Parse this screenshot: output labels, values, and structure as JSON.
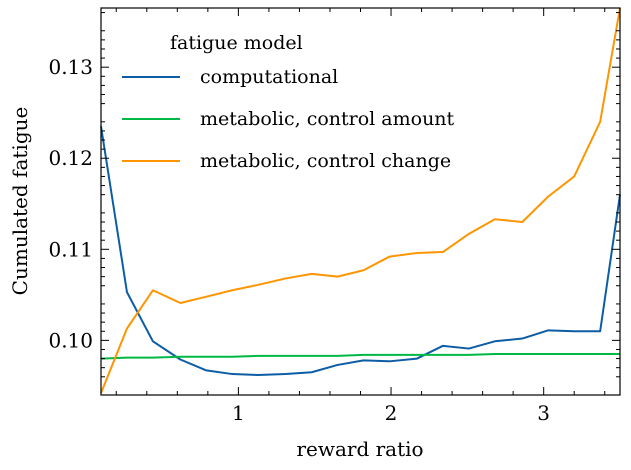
{
  "chart_data": {
    "type": "line",
    "xlabel": "reward ratio",
    "ylabel": "Cumulated fatigue",
    "xlim": [
      0.1,
      3.5
    ],
    "ylim": [
      0.094,
      0.1365
    ],
    "xticks": [
      1,
      2,
      3
    ],
    "xtick_labels": [
      "1",
      "2",
      "3"
    ],
    "yticks": [
      0.1,
      0.11,
      0.12,
      0.13
    ],
    "ytick_labels": [
      "0.10",
      "0.11",
      "0.12",
      "0.13"
    ],
    "grid": false,
    "legend": {
      "title": "fatigue model",
      "placement": "top-left"
    },
    "x": [
      0.1,
      0.27,
      0.44,
      0.62,
      0.79,
      0.96,
      1.13,
      1.31,
      1.48,
      1.65,
      1.82,
      1.99,
      2.17,
      2.34,
      2.51,
      2.68,
      2.86,
      3.03,
      3.2,
      3.37,
      3.5
    ],
    "series": [
      {
        "name": "computational",
        "color": "#0c5da5",
        "values": [
          0.1235,
          0.1053,
          0.0999,
          0.0979,
          0.0967,
          0.0963,
          0.0962,
          0.0963,
          0.0965,
          0.0973,
          0.0978,
          0.0977,
          0.098,
          0.0994,
          0.0991,
          0.0999,
          0.1002,
          0.1011,
          0.101,
          0.101,
          0.116
        ]
      },
      {
        "name": "metabolic, control amount",
        "color": "#00b945",
        "values": [
          0.098,
          0.0981,
          0.0981,
          0.0982,
          0.0982,
          0.0982,
          0.0983,
          0.0983,
          0.0983,
          0.0983,
          0.0984,
          0.0984,
          0.0984,
          0.0984,
          0.0984,
          0.0985,
          0.0985,
          0.0985,
          0.0985,
          0.0985,
          0.0985
        ]
      },
      {
        "name": "metabolic, control change",
        "color": "#ff9500",
        "values": [
          0.0942,
          0.1013,
          0.1055,
          0.1041,
          0.1048,
          0.1055,
          0.1061,
          0.1068,
          0.1073,
          0.107,
          0.1077,
          0.1092,
          0.1096,
          0.1097,
          0.1117,
          0.1133,
          0.113,
          0.1158,
          0.118,
          0.124,
          0.1365
        ]
      }
    ]
  }
}
